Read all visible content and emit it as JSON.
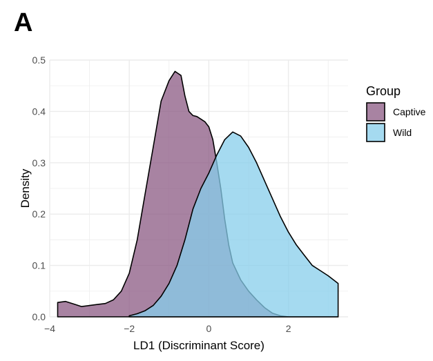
{
  "panel_label": "A",
  "chart_data": {
    "type": "area",
    "title": "",
    "xlabel": "LD1 (Discriminant Score)",
    "ylabel": "Density",
    "xlim": [
      -4,
      3.5
    ],
    "ylim": [
      0,
      0.5
    ],
    "x_ticks": [
      -4,
      -2,
      0,
      2
    ],
    "x_tick_labels": [
      "−4",
      "−2",
      "0",
      "2"
    ],
    "y_ticks": [
      0.0,
      0.1,
      0.2,
      0.3,
      0.4,
      0.5
    ],
    "y_tick_labels": [
      "0.0",
      "0.1",
      "0.2",
      "0.3",
      "0.4",
      "0.5"
    ],
    "grid": true,
    "legend": {
      "title": "Group",
      "position": "right",
      "entries": [
        {
          "label": "Captive",
          "color": "#8b5a83"
        },
        {
          "label": "Wild",
          "color": "#87ceeb"
        }
      ]
    },
    "series": [
      {
        "name": "Captive",
        "color": "#8b5a83",
        "points": [
          [
            -3.8,
            0.028
          ],
          [
            -3.6,
            0.03
          ],
          [
            -3.4,
            0.025
          ],
          [
            -3.2,
            0.02
          ],
          [
            -3.0,
            0.022
          ],
          [
            -2.8,
            0.024
          ],
          [
            -2.6,
            0.026
          ],
          [
            -2.4,
            0.033
          ],
          [
            -2.2,
            0.05
          ],
          [
            -2.0,
            0.085
          ],
          [
            -1.8,
            0.15
          ],
          [
            -1.6,
            0.24
          ],
          [
            -1.4,
            0.33
          ],
          [
            -1.2,
            0.42
          ],
          [
            -1.0,
            0.46
          ],
          [
            -0.85,
            0.478
          ],
          [
            -0.7,
            0.47
          ],
          [
            -0.6,
            0.43
          ],
          [
            -0.5,
            0.4
          ],
          [
            -0.4,
            0.392
          ],
          [
            -0.3,
            0.39
          ],
          [
            -0.2,
            0.385
          ],
          [
            -0.1,
            0.38
          ],
          [
            0.0,
            0.37
          ],
          [
            0.1,
            0.345
          ],
          [
            0.2,
            0.3
          ],
          [
            0.3,
            0.25
          ],
          [
            0.4,
            0.19
          ],
          [
            0.5,
            0.14
          ],
          [
            0.6,
            0.105
          ],
          [
            0.8,
            0.072
          ],
          [
            1.0,
            0.05
          ],
          [
            1.2,
            0.033
          ],
          [
            1.4,
            0.018
          ],
          [
            1.6,
            0.007
          ],
          [
            1.8,
            0.002
          ],
          [
            2.0,
            0.0
          ],
          [
            3.25,
            0.0
          ]
        ]
      },
      {
        "name": "Wild",
        "color": "#87ceeb",
        "points": [
          [
            -2.0,
            0.002
          ],
          [
            -1.8,
            0.006
          ],
          [
            -1.6,
            0.012
          ],
          [
            -1.4,
            0.022
          ],
          [
            -1.2,
            0.04
          ],
          [
            -1.0,
            0.065
          ],
          [
            -0.8,
            0.1
          ],
          [
            -0.6,
            0.15
          ],
          [
            -0.4,
            0.21
          ],
          [
            -0.2,
            0.25
          ],
          [
            0.0,
            0.28
          ],
          [
            0.2,
            0.315
          ],
          [
            0.4,
            0.345
          ],
          [
            0.6,
            0.36
          ],
          [
            0.8,
            0.352
          ],
          [
            1.0,
            0.33
          ],
          [
            1.2,
            0.3
          ],
          [
            1.4,
            0.265
          ],
          [
            1.6,
            0.23
          ],
          [
            1.8,
            0.195
          ],
          [
            2.0,
            0.165
          ],
          [
            2.2,
            0.14
          ],
          [
            2.4,
            0.12
          ],
          [
            2.6,
            0.1
          ],
          [
            2.8,
            0.09
          ],
          [
            3.0,
            0.08
          ],
          [
            3.25,
            0.065
          ]
        ]
      }
    ]
  }
}
